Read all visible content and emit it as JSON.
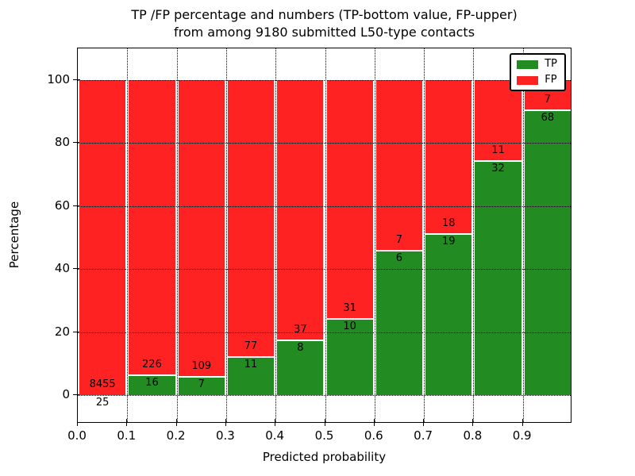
{
  "figure": {
    "title_line1": "TP /FP percentage and numbers (TP-bottom value, FP-upper)",
    "title_line2": "from among 9180 submitted L50-type contacts",
    "xlabel": "Predicted probability",
    "ylabel": "Percentage"
  },
  "legend": {
    "position": "upper right",
    "items": [
      {
        "label": "TP",
        "color": "#228b22"
      },
      {
        "label": "FP",
        "color": "#ff2222"
      }
    ]
  },
  "chart_data": {
    "type": "bar",
    "stacked": true,
    "normalized_to_percent": 100,
    "title": "TP /FP percentage and numbers (TP-bottom value, FP-upper) from among 9180 submitted L50-type contacts",
    "total_contacts_in_title": 9180,
    "xlabel": "Predicted probability",
    "ylabel": "Percentage",
    "bin_start": [
      0.0,
      0.1,
      0.2,
      0.3,
      0.4,
      0.5,
      0.6,
      0.7,
      0.8,
      0.9
    ],
    "bin_width": 0.1,
    "series": [
      {
        "name": "TP",
        "color": "#228b22",
        "counts": [
          25,
          16,
          7,
          11,
          8,
          10,
          6,
          19,
          32,
          68
        ]
      },
      {
        "name": "FP",
        "color": "#ff2222",
        "counts": [
          8455,
          226,
          109,
          77,
          37,
          31,
          7,
          18,
          11,
          7
        ]
      }
    ],
    "tp_percent_height": [
      0.3,
      6.6,
      6.0,
      12.5,
      17.8,
      24.4,
      46.2,
      51.4,
      74.4,
      90.7
    ],
    "xticks": [
      "0.0",
      "0.1",
      "0.2",
      "0.3",
      "0.4",
      "0.5",
      "0.6",
      "0.7",
      "0.8",
      "0.9"
    ],
    "yticks": [
      "0",
      "20",
      "40",
      "60",
      "80",
      "100"
    ],
    "xlim": [
      0.0,
      1.0
    ],
    "ylim": [
      -9,
      110
    ],
    "grid": "dotted",
    "legend_position": "upper right"
  }
}
